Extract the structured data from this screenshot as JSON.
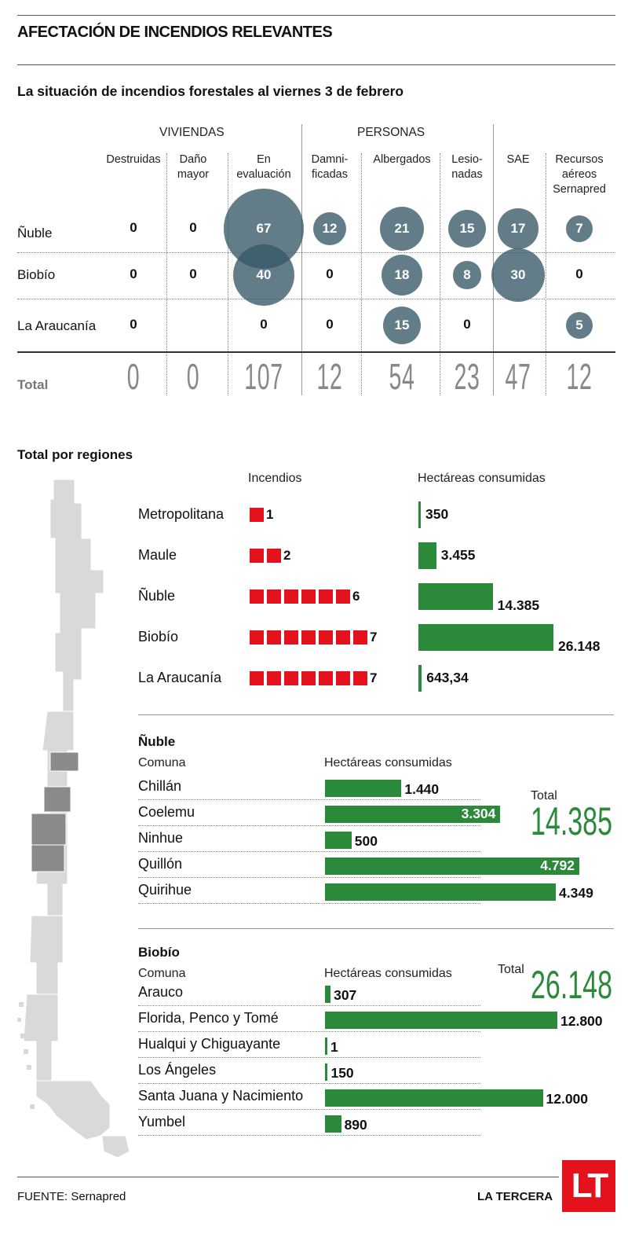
{
  "title": "AFECTACIÓN DE INCENDIOS RELEVANTES",
  "subtitle": "La situación de incendios forestales al viernes 3 de febrero",
  "colors": {
    "bubble": "#365867",
    "red": "#e3121c",
    "green": "#2a8a3a"
  },
  "groups": {
    "viviendas": "VIVIENDAS",
    "personas": "PERSONAS"
  },
  "columns": [
    "Destruidas",
    "Daño mayor",
    "En evaluación",
    "Damni-ficadas",
    "Albergados",
    "Lesio-nadas",
    "SAE",
    "Recursos aéreos Sernapred"
  ],
  "column_lines": [
    [
      "Destruidas"
    ],
    [
      "Daño",
      "mayor"
    ],
    [
      "En",
      "evaluación"
    ],
    [
      "Damni-",
      "ficadas"
    ],
    [
      "Albergados"
    ],
    [
      "Lesio-",
      "nadas"
    ],
    [
      "SAE"
    ],
    [
      "Recursos",
      "aéreos",
      "Sernapred"
    ]
  ],
  "row_labels": [
    "Ñuble",
    "Biobío",
    "La Araucanía"
  ],
  "total_label": "Total",
  "chart_data": [
    {
      "type": "table",
      "title": "La situación de incendios forestales al viernes 3 de febrero",
      "columns": [
        "Destruidas",
        "Daño mayor",
        "En evaluación",
        "Damnificadas",
        "Albergados",
        "Lesionadas",
        "SAE",
        "Recursos aéreos Sernapred"
      ],
      "rows": [
        {
          "name": "Ñuble",
          "values": [
            "0",
            "0",
            "67",
            "12",
            "21",
            "15",
            "17",
            "7"
          ]
        },
        {
          "name": "Biobío",
          "values": [
            "0",
            "0",
            "40",
            "0",
            "18",
            "8",
            "30",
            "0"
          ]
        },
        {
          "name": "La Araucanía",
          "values": [
            "0",
            "",
            "0",
            "0",
            "15",
            "0",
            "",
            "5"
          ]
        }
      ],
      "totals": [
        "0",
        "0",
        "107",
        "12",
        "54",
        "23",
        "47",
        "12"
      ]
    },
    {
      "type": "bar",
      "title": "Total por regiones",
      "headers": {
        "incendios": "Incendios",
        "hectareas": "Hectáreas consumidas"
      },
      "categories": [
        "Metropolitana",
        "Maule",
        "Ñuble",
        "Biobío",
        "La Araucanía"
      ],
      "series": [
        {
          "name": "Incendios",
          "values": [
            1,
            2,
            6,
            7,
            7
          ],
          "labels": [
            "1",
            "2",
            "6",
            "7",
            "7"
          ]
        },
        {
          "name": "Hectáreas consumidas",
          "values": [
            350,
            3455,
            14385,
            26148,
            643.34
          ],
          "labels": [
            "350",
            "3.455",
            "14.385",
            "26.148",
            "643,34"
          ]
        }
      ]
    },
    {
      "type": "bar",
      "title": "Ñuble",
      "xlabel": "Comuna",
      "ylabel": "Hectáreas consumidas",
      "total_label": "Total",
      "total": "14.385",
      "categories": [
        "Chillán",
        "Coelemu",
        "Ninhue",
        "Quillón",
        "Quirihue"
      ],
      "values": [
        1440,
        3304,
        500,
        4792,
        4349
      ],
      "labels": [
        "1.440",
        "3.304",
        "500",
        "4.792",
        "4.349"
      ],
      "label_inside": [
        false,
        true,
        false,
        true,
        false
      ]
    },
    {
      "type": "bar",
      "title": "Biobío",
      "xlabel": "Comuna",
      "ylabel": "Hectáreas consumidas",
      "total_label": "Total",
      "total": "26.148",
      "categories": [
        "Arauco",
        "Florida, Penco y Tomé",
        "Hualqui y Chiguayante",
        "Los Ángeles",
        "Santa Juana y Nacimiento",
        "Yumbel"
      ],
      "values": [
        307,
        12800,
        1,
        150,
        12000,
        890
      ],
      "labels": [
        "307",
        "12.800",
        "1",
        "150",
        "12.000",
        "890"
      ]
    }
  ],
  "footer": {
    "source": "FUENTE: Sernapred",
    "brand": "LA TERCERA",
    "logo": "LT"
  }
}
